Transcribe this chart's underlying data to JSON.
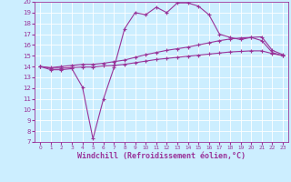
{
  "xlabel": "Windchill (Refroidissement éolien,°C)",
  "background_color": "#cceeff",
  "grid_color": "#ffffff",
  "line_color": "#993399",
  "xlim": [
    -0.5,
    23.5
  ],
  "ylim": [
    7,
    20
  ],
  "xticks": [
    0,
    1,
    2,
    3,
    4,
    5,
    6,
    7,
    8,
    9,
    10,
    11,
    12,
    13,
    14,
    15,
    16,
    17,
    18,
    19,
    20,
    21,
    22,
    23
  ],
  "yticks": [
    7,
    8,
    9,
    10,
    11,
    12,
    13,
    14,
    15,
    16,
    17,
    18,
    19,
    20
  ],
  "line1_x": [
    0,
    1,
    2,
    3,
    4,
    5,
    6,
    7,
    8,
    9,
    10,
    11,
    12,
    13,
    14,
    15,
    16,
    17,
    18,
    19,
    20,
    21,
    22,
    23
  ],
  "line1_y": [
    14.0,
    13.7,
    13.7,
    13.8,
    12.1,
    7.3,
    11.0,
    13.9,
    17.5,
    19.0,
    18.8,
    19.5,
    19.0,
    19.9,
    19.9,
    19.6,
    18.8,
    17.0,
    16.7,
    16.5,
    16.7,
    16.4,
    15.3,
    15.0
  ],
  "line2_x": [
    0,
    1,
    2,
    3,
    4,
    5,
    6,
    7,
    8,
    9,
    10,
    11,
    12,
    13,
    14,
    15,
    16,
    17,
    18,
    19,
    20,
    21,
    22,
    23
  ],
  "line2_y": [
    14.0,
    13.9,
    14.0,
    14.1,
    14.2,
    14.2,
    14.3,
    14.45,
    14.6,
    14.85,
    15.1,
    15.3,
    15.5,
    15.65,
    15.8,
    16.0,
    16.2,
    16.4,
    16.55,
    16.65,
    16.7,
    16.75,
    15.5,
    15.1
  ],
  "line3_x": [
    0,
    1,
    2,
    3,
    4,
    5,
    6,
    7,
    8,
    9,
    10,
    11,
    12,
    13,
    14,
    15,
    16,
    17,
    18,
    19,
    20,
    21,
    22,
    23
  ],
  "line3_y": [
    14.0,
    13.85,
    13.85,
    13.9,
    13.95,
    13.95,
    14.05,
    14.1,
    14.2,
    14.35,
    14.5,
    14.65,
    14.75,
    14.85,
    14.95,
    15.05,
    15.15,
    15.25,
    15.35,
    15.4,
    15.45,
    15.45,
    15.2,
    15.0
  ],
  "tick_fontsize": 5.5,
  "xlabel_fontsize": 6.0
}
